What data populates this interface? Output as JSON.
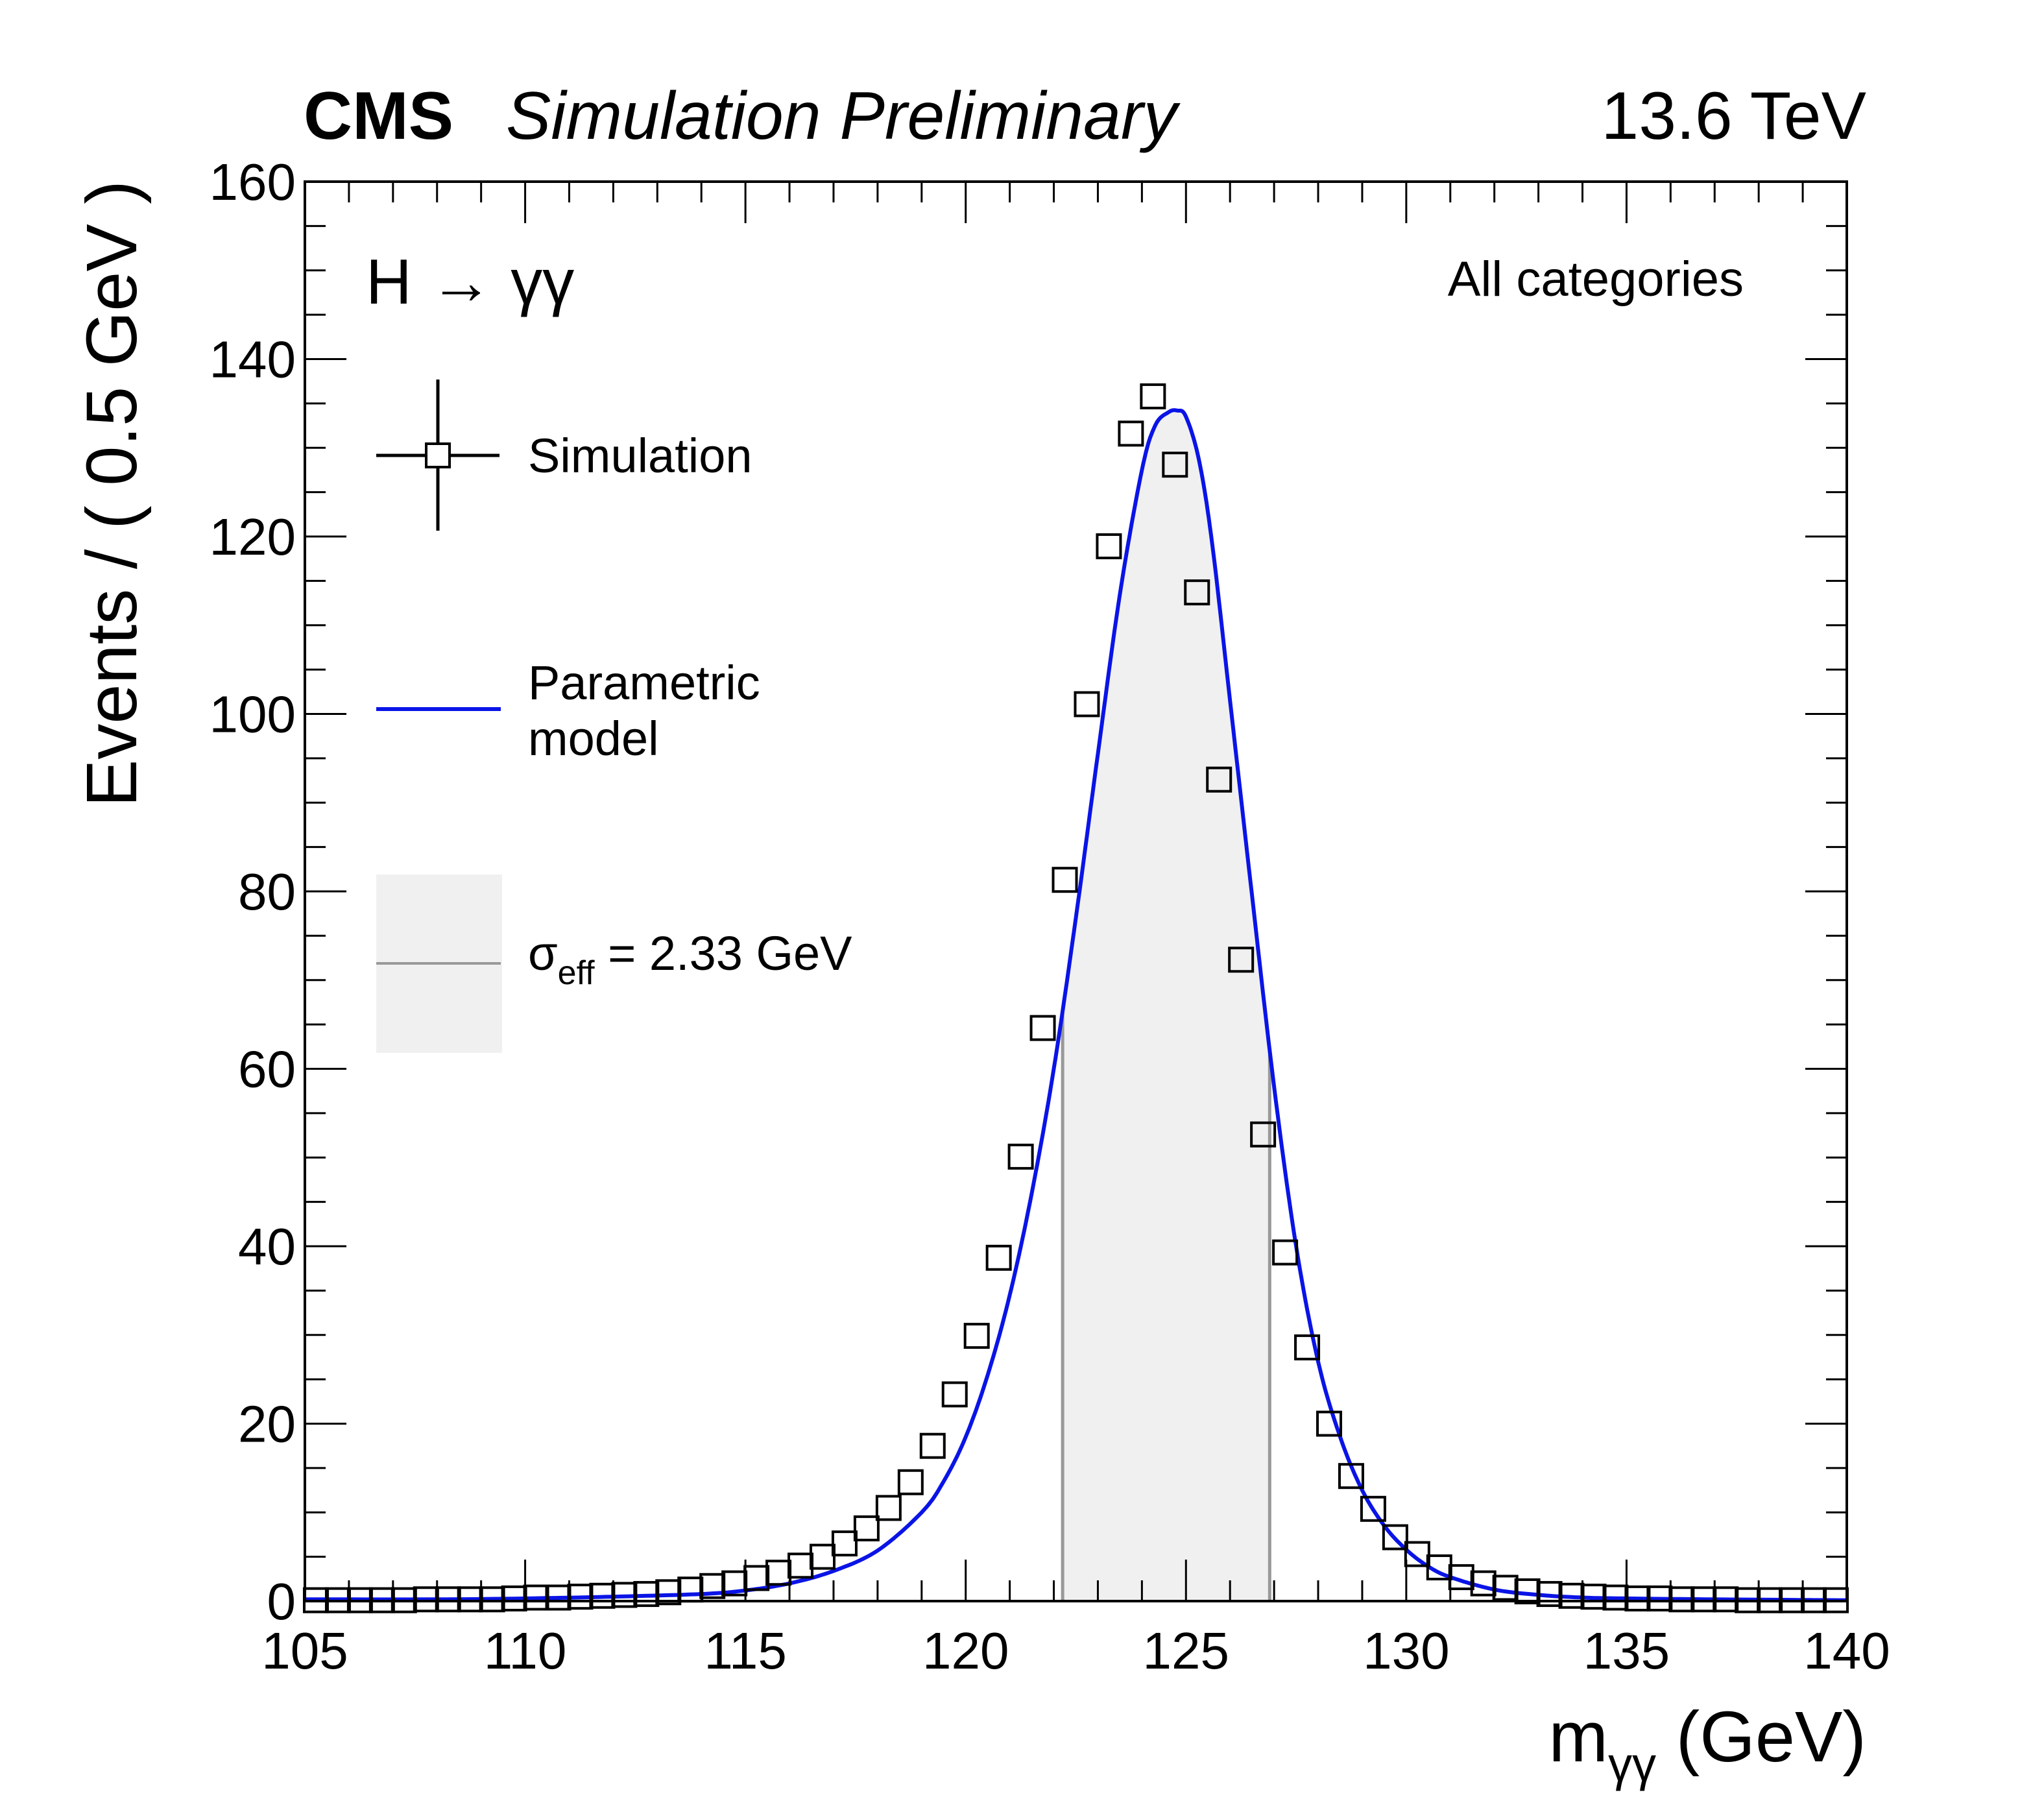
{
  "header": {
    "experiment": "CMS",
    "status": "Simulation Preliminary",
    "energy": "13.6 TeV"
  },
  "annotations": {
    "process": "H → γγ",
    "category": "All categories"
  },
  "legend": {
    "simulation": "Simulation",
    "model_line1": "Parametric",
    "model_line2": "model",
    "sigma_symbol": "σ",
    "sigma_sub": "eff",
    "sigma_value": " = 2.33 GeV"
  },
  "chart_data": {
    "type": "scatter",
    "xlabel": "m",
    "xlabel_sub": "γγ",
    "xlabel_unit": " (GeV)",
    "ylabel": "Events / ( 0.5 GeV )",
    "xlim": [
      105,
      140
    ],
    "ylim": [
      0,
      160
    ],
    "x_ticks": [
      105,
      110,
      115,
      120,
      125,
      130,
      135,
      140
    ],
    "y_ticks": [
      0,
      20,
      40,
      60,
      80,
      100,
      120,
      140,
      160
    ],
    "colors": {
      "model": "#0a14e6",
      "band_fill": "#f0f0f0",
      "band_edge": "#999999"
    },
    "series": [
      {
        "name": "Simulation",
        "style": "open-square-markers",
        "x": [
          105.25,
          105.75,
          106.25,
          106.75,
          107.25,
          107.75,
          108.25,
          108.75,
          109.25,
          109.75,
          110.25,
          110.75,
          111.25,
          111.75,
          112.25,
          112.75,
          113.25,
          113.75,
          114.25,
          114.75,
          115.25,
          115.75,
          116.25,
          116.75,
          117.25,
          117.75,
          118.25,
          118.75,
          119.25,
          119.75,
          120.25,
          120.75,
          121.25,
          121.75,
          122.25,
          122.75,
          123.25,
          123.75,
          124.25,
          124.75,
          125.25,
          125.75,
          126.25,
          126.75,
          127.25,
          127.75,
          128.25,
          128.75,
          129.25,
          129.75,
          130.25,
          130.75,
          131.25,
          131.75,
          132.25,
          132.75,
          133.25,
          133.75,
          134.25,
          134.75,
          135.25,
          135.75,
          136.25,
          136.75,
          137.25,
          137.75,
          138.25,
          138.75,
          139.25,
          139.75
        ],
        "y": [
          0.1,
          0.1,
          0.1,
          0.1,
          0.1,
          0.2,
          0.2,
          0.2,
          0.2,
          0.3,
          0.4,
          0.4,
          0.5,
          0.6,
          0.7,
          0.8,
          1.0,
          1.3,
          1.7,
          2.0,
          2.6,
          3.2,
          4.0,
          5.0,
          6.5,
          8.2,
          10.5,
          13.4,
          17.5,
          23.3,
          29.9,
          38.7,
          50.1,
          64.6,
          81.3,
          101.1,
          118.9,
          131.6,
          135.8,
          128.1,
          113.7,
          92.6,
          72.3,
          52.6,
          39.3,
          28.6,
          20.0,
          14.1,
          10.4,
          7.2,
          5.3,
          3.8,
          2.7,
          2.0,
          1.5,
          1.1,
          0.8,
          0.6,
          0.5,
          0.4,
          0.3,
          0.3,
          0.2,
          0.2,
          0.2,
          0.1,
          0.1,
          0.1,
          0.1,
          0.1
        ]
      },
      {
        "name": "Parametric model",
        "style": "line",
        "peak_x": 124.8,
        "peak_y": 134.2,
        "x": [
          105,
          108,
          110,
          112,
          114,
          115,
          116,
          117,
          118,
          119,
          119.5,
          120,
          120.5,
          121,
          121.5,
          122,
          122.5,
          123,
          123.5,
          124,
          124.3,
          124.6,
          124.8,
          125,
          125.3,
          125.6,
          126,
          126.5,
          127,
          127.5,
          128,
          128.5,
          129,
          129.5,
          130,
          130.5,
          131,
          132,
          133,
          134,
          135,
          137,
          140
        ],
        "y": [
          0.2,
          0.2,
          0.3,
          0.5,
          0.8,
          1.2,
          2.0,
          3.4,
          5.7,
          10.0,
          13.5,
          18.5,
          25.5,
          34.5,
          46.0,
          60.0,
          77.0,
          95.5,
          113.5,
          127.5,
          132.5,
          134.0,
          134.2,
          133.5,
          128.5,
          119.0,
          101.5,
          79.5,
          58.0,
          40.0,
          27.0,
          18.5,
          12.5,
          8.5,
          5.8,
          3.9,
          2.7,
          1.3,
          0.7,
          0.4,
          0.3,
          0.2,
          0.1
        ]
      }
    ],
    "sigma_eff_band": {
      "x_low": 122.2,
      "x_high": 126.9
    }
  }
}
